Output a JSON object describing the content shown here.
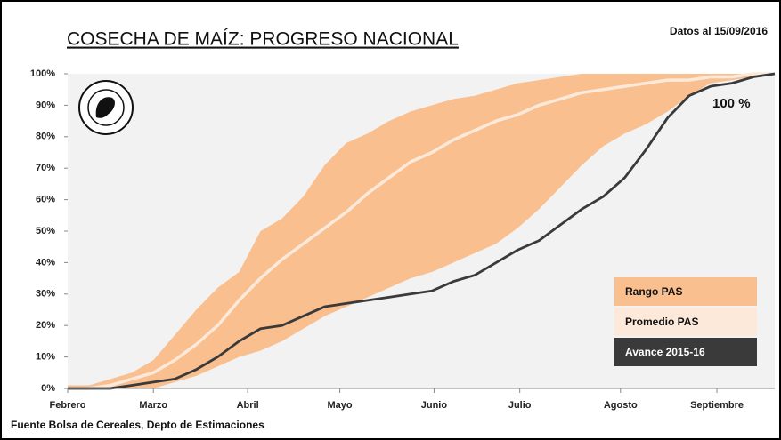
{
  "chart_data": {
    "type": "line",
    "title": "COSECHA DE MAÍZ: PROGRESO NACIONAL",
    "subtitle": "Datos al 15/09/2016",
    "source": "Fuente Bolsa de Cereales, Depto de Estimaciones",
    "annotation": "100 %",
    "x": [
      0,
      1,
      2,
      3,
      4,
      5,
      6,
      7,
      8,
      9,
      10,
      11,
      12,
      13,
      14,
      15,
      16,
      17,
      18,
      19,
      20,
      21,
      22,
      23,
      24,
      25,
      26,
      27,
      28,
      29,
      30,
      31,
      32,
      33
    ],
    "xlim": [
      0,
      33
    ],
    "xticks": [
      {
        "value": 0,
        "label": "Febrero"
      },
      {
        "value": 4,
        "label": "Marzo"
      },
      {
        "value": 8.4,
        "label": "Abril"
      },
      {
        "value": 12.7,
        "label": "Mayo"
      },
      {
        "value": 17.1,
        "label": "Junio"
      },
      {
        "value": 21.1,
        "label": "Julio"
      },
      {
        "value": 25.8,
        "label": "Agosto"
      },
      {
        "value": 30.3,
        "label": "Septiembre"
      }
    ],
    "ylim": [
      0,
      100
    ],
    "yticks": [
      {
        "value": 0,
        "label": "0%"
      },
      {
        "value": 10,
        "label": "10%"
      },
      {
        "value": 20,
        "label": "20%"
      },
      {
        "value": 30,
        "label": "30%"
      },
      {
        "value": 40,
        "label": "40%"
      },
      {
        "value": 50,
        "label": "50%"
      },
      {
        "value": 60,
        "label": "60%"
      },
      {
        "value": 70,
        "label": "70%"
      },
      {
        "value": 80,
        "label": "80%"
      },
      {
        "value": 90,
        "label": "90%"
      },
      {
        "value": 100,
        "label": "100%"
      }
    ],
    "legend": "lower right",
    "series": [
      {
        "name": "Rango PAS",
        "color": "#f9bf8f",
        "kind": "band",
        "values": [
          1,
          1,
          3,
          5,
          9,
          17,
          25,
          32,
          37,
          50,
          54,
          61,
          71,
          78,
          81,
          85,
          88,
          90,
          92,
          93,
          95,
          97,
          98,
          99,
          100,
          100,
          100,
          100,
          100,
          100,
          100,
          100,
          100,
          100
        ],
        "lower": [
          0,
          0,
          0,
          0,
          0,
          2,
          4,
          7,
          10,
          12,
          15,
          19,
          23,
          26,
          29,
          32,
          35,
          37,
          40,
          43,
          46,
          51,
          57,
          64,
          71,
          77,
          81,
          84,
          88,
          93,
          97,
          98,
          99,
          100
        ]
      },
      {
        "name": "Promedio PAS",
        "color": "#fde9d9",
        "values": [
          0,
          0,
          1,
          3,
          5,
          9,
          14,
          20,
          28,
          35,
          41,
          46,
          51,
          56,
          62,
          67,
          72,
          75,
          79,
          82,
          85,
          87,
          90,
          92,
          94,
          95,
          96,
          97,
          98,
          98,
          99,
          99,
          100,
          100
        ]
      },
      {
        "name": "Avance 2015-16",
        "color": "#3a3a3a",
        "values": [
          0,
          0,
          0,
          1,
          2,
          3,
          6,
          10,
          15,
          19,
          20,
          23,
          26,
          27,
          28,
          29,
          30,
          31,
          34,
          36,
          40,
          44,
          47,
          52,
          57,
          61,
          67,
          76,
          86,
          93,
          96,
          97,
          99,
          100
        ]
      }
    ]
  }
}
